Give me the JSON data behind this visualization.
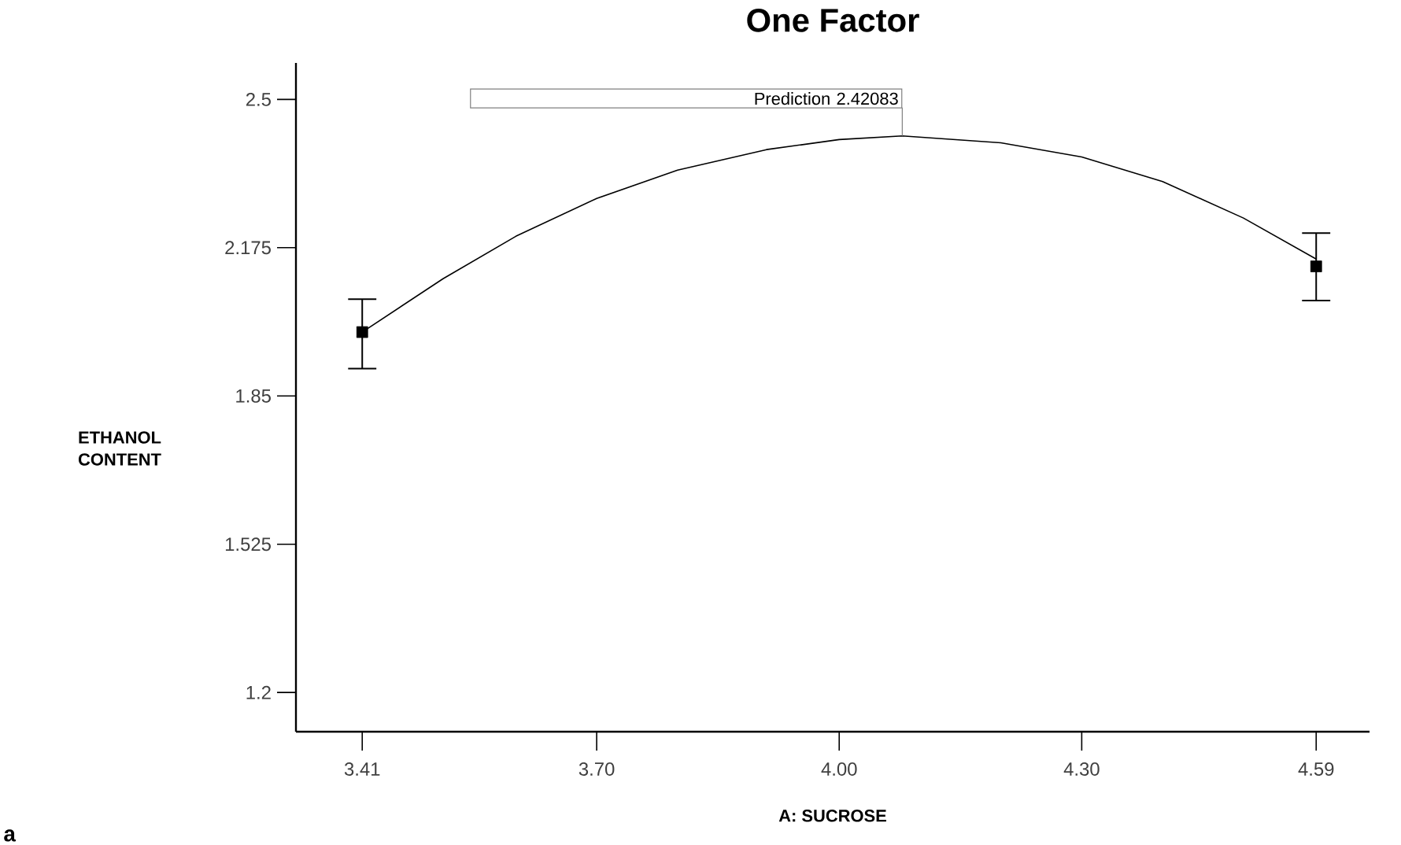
{
  "chart_data": {
    "type": "line",
    "title": "One Factor",
    "xlabel": "A: SUCROSE",
    "ylabel": "ETHANOL CONTENT",
    "xlim": [
      3.328,
      4.656
    ],
    "ylim": [
      1.114,
      2.58
    ],
    "xticks": [
      3.41,
      {
        "value": 3.7,
        "label": "3.70"
      },
      {
        "value": 4.0,
        "label": "4.00"
      },
      {
        "value": 4.3,
        "label": "4.30"
      },
      4.59
    ],
    "yticks": [
      1.2,
      1.525,
      1.85,
      2.175,
      2.5
    ],
    "series": [
      {
        "color": "#000000",
        "marker": "none",
        "x": [
          3.41,
          3.51,
          3.6,
          3.7,
          3.8,
          3.91,
          4.0,
          4.078,
          4.2,
          4.3,
          4.4,
          4.5,
          4.59
        ],
        "values": [
          1.99,
          2.107,
          2.2,
          2.283,
          2.345,
          2.39,
          2.412,
          2.42,
          2.405,
          2.374,
          2.32,
          2.24,
          2.15
        ]
      },
      {
        "type": "scatter",
        "color": "#000000",
        "marker": "square",
        "x": [
          3.41,
          4.59
        ],
        "values": [
          1.99,
          2.134
        ],
        "errors": [
          [
            1.91,
            2.062
          ],
          [
            2.059,
            2.207
          ]
        ]
      }
    ],
    "annotations": [
      {
        "text": "Prediction 2.42083",
        "x": 4.078,
        "y": 2.42
      },
      "a"
    ]
  }
}
